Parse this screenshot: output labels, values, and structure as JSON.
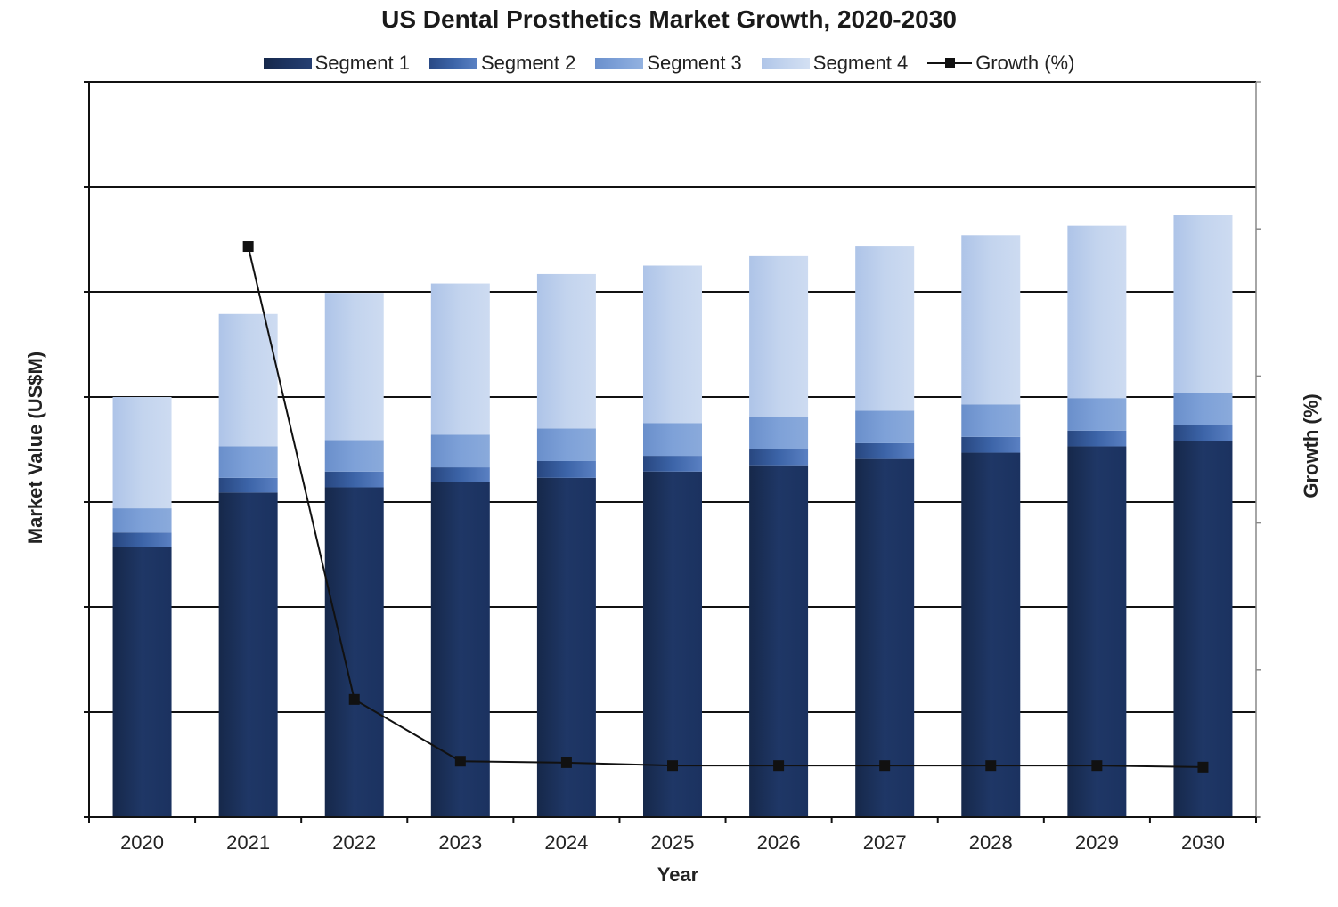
{
  "chart_data": {
    "type": "bar",
    "stacked": true,
    "title": "US Dental Prosthetics Market Growth, 2020-2030",
    "xlabel": "Year",
    "ylabel": "Market Value (US$M)",
    "y2label": "Growth (%)",
    "categories": [
      "2020",
      "2021",
      "2022",
      "2023",
      "2024",
      "2025",
      "2026",
      "2027",
      "2028",
      "2029",
      "2030"
    ],
    "ylim": [
      0,
      70
    ],
    "y2lim": [
      0,
      25
    ],
    "grid": true,
    "legend_position": "top",
    "series": [
      {
        "name": "Segment 1",
        "type": "bar",
        "color": "#1d3461",
        "values": [
          25.7,
          30.9,
          31.4,
          31.9,
          32.3,
          32.9,
          33.5,
          34.1,
          34.7,
          35.3,
          35.8
        ]
      },
      {
        "name": "Segment 2",
        "type": "bar",
        "color": "#3c64a8",
        "values": [
          1.4,
          1.4,
          1.5,
          1.4,
          1.6,
          1.5,
          1.5,
          1.5,
          1.5,
          1.5,
          1.5
        ]
      },
      {
        "name": "Segment 3",
        "type": "bar",
        "color": "#7ea1d8",
        "values": [
          2.3,
          3.0,
          3.0,
          3.1,
          3.1,
          3.1,
          3.1,
          3.1,
          3.1,
          3.1,
          3.1
        ]
      },
      {
        "name": "Segment 4",
        "type": "bar",
        "color": "#c3d4ee",
        "values": [
          10.6,
          12.6,
          14.0,
          14.4,
          14.7,
          15.0,
          15.3,
          15.7,
          16.1,
          16.4,
          16.9
        ]
      },
      {
        "name": "Growth (%)",
        "type": "line",
        "axis": "right",
        "color": "#111111",
        "values": [
          null,
          19.4,
          4.0,
          1.9,
          1.85,
          1.75,
          1.75,
          1.75,
          1.75,
          1.75,
          1.7
        ]
      }
    ]
  }
}
